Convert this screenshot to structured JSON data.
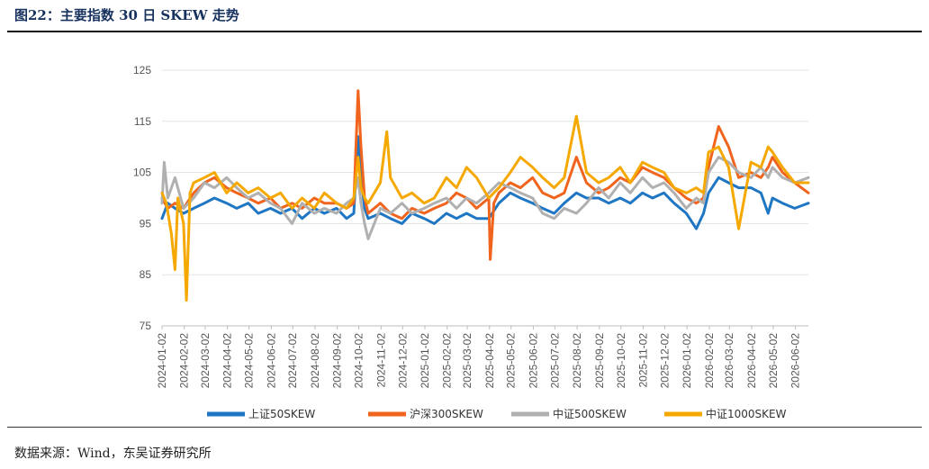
{
  "figure": {
    "title": "图22：主要指数 30 日 SKEW 走势",
    "source": "数据来源：Wind，东吴证券研究所"
  },
  "chart_data": {
    "type": "line",
    "x_categories": [
      "2024-01-02",
      "2024-02-02",
      "2024-03-02",
      "2024-04-02",
      "2024-05-02",
      "2024-06-02",
      "2024-07-02",
      "2024-08-02",
      "2024-09-02",
      "2024-10-02",
      "2024-11-02",
      "2024-12-02",
      "2025-01-02",
      "2025-02-02",
      "2025-03-02",
      "2025-04-02",
      "2025-05-02",
      "2025-06-02",
      "2025-07-02",
      "2025-08-02",
      "2025-09-02",
      "2025-10-02",
      "2025-11-02",
      "2025-12-02",
      "2026-01-02",
      "2026-02-02",
      "2026-03-02",
      "2026-04-02",
      "2026-05-02",
      "2026-06-02"
    ],
    "x_range": [
      "2024-01-02",
      "2026-06-20"
    ],
    "ylim": [
      75,
      125
    ],
    "yticks": [
      75,
      85,
      95,
      105,
      115,
      125
    ],
    "grid": "horizontal",
    "legend_position": "bottom",
    "series": [
      {
        "name": "上证50SKEW",
        "color": "#1f77c4",
        "points": [
          [
            "2024-01-02",
            96
          ],
          [
            "2024-01-10",
            99
          ],
          [
            "2024-01-20",
            98
          ],
          [
            "2024-02-01",
            97
          ],
          [
            "2024-02-15",
            98
          ],
          [
            "2024-03-01",
            99
          ],
          [
            "2024-03-15",
            100
          ],
          [
            "2024-04-01",
            99
          ],
          [
            "2024-04-15",
            98
          ],
          [
            "2024-05-01",
            99
          ],
          [
            "2024-05-15",
            97
          ],
          [
            "2024-06-01",
            98
          ],
          [
            "2024-06-15",
            97
          ],
          [
            "2024-07-01",
            98
          ],
          [
            "2024-07-15",
            96
          ],
          [
            "2024-08-01",
            98
          ],
          [
            "2024-08-15",
            97
          ],
          [
            "2024-09-01",
            98
          ],
          [
            "2024-09-15",
            96
          ],
          [
            "2024-09-25",
            97
          ],
          [
            "2024-10-01",
            112
          ],
          [
            "2024-10-05",
            104
          ],
          [
            "2024-10-10",
            98
          ],
          [
            "2024-10-15",
            96
          ],
          [
            "2024-11-01",
            97
          ],
          [
            "2024-11-15",
            96
          ],
          [
            "2024-12-01",
            95
          ],
          [
            "2024-12-15",
            97
          ],
          [
            "2025-01-01",
            96
          ],
          [
            "2025-01-15",
            95
          ],
          [
            "2025-02-01",
            97
          ],
          [
            "2025-02-15",
            96
          ],
          [
            "2025-03-01",
            97
          ],
          [
            "2025-03-15",
            96
          ],
          [
            "2025-04-01",
            96
          ],
          [
            "2025-04-15",
            99
          ],
          [
            "2025-05-01",
            101
          ],
          [
            "2025-05-15",
            100
          ],
          [
            "2025-06-01",
            99
          ],
          [
            "2025-06-15",
            98
          ],
          [
            "2025-07-01",
            97
          ],
          [
            "2025-07-15",
            99
          ],
          [
            "2025-08-01",
            101
          ],
          [
            "2025-08-15",
            100
          ],
          [
            "2025-09-01",
            100
          ],
          [
            "2025-09-15",
            99
          ],
          [
            "2025-10-01",
            100
          ],
          [
            "2025-10-15",
            99
          ],
          [
            "2025-11-01",
            101
          ],
          [
            "2025-11-15",
            100
          ],
          [
            "2025-12-01",
            101
          ],
          [
            "2025-12-15",
            99
          ],
          [
            "2026-01-01",
            97
          ],
          [
            "2026-01-15",
            94
          ],
          [
            "2026-01-25",
            97
          ],
          [
            "2026-02-01",
            101
          ],
          [
            "2026-02-15",
            104
          ],
          [
            "2026-03-01",
            103
          ],
          [
            "2026-03-15",
            102
          ],
          [
            "2026-04-01",
            102
          ],
          [
            "2026-04-15",
            101
          ],
          [
            "2026-04-25",
            97
          ],
          [
            "2026-05-01",
            100
          ],
          [
            "2026-05-15",
            99
          ],
          [
            "2026-06-01",
            98
          ],
          [
            "2026-06-20",
            99
          ]
        ]
      },
      {
        "name": "沪深300SKEW",
        "color": "#f0641e",
        "points": [
          [
            "2024-01-02",
            100
          ],
          [
            "2024-01-10",
            98
          ],
          [
            "2024-01-20",
            99
          ],
          [
            "2024-02-01",
            98
          ],
          [
            "2024-02-15",
            101
          ],
          [
            "2024-03-01",
            103
          ],
          [
            "2024-03-15",
            104
          ],
          [
            "2024-04-01",
            102
          ],
          [
            "2024-04-15",
            101
          ],
          [
            "2024-05-01",
            100
          ],
          [
            "2024-05-15",
            99
          ],
          [
            "2024-06-01",
            100
          ],
          [
            "2024-06-15",
            98
          ],
          [
            "2024-07-01",
            99
          ],
          [
            "2024-07-15",
            98
          ],
          [
            "2024-08-01",
            100
          ],
          [
            "2024-08-15",
            99
          ],
          [
            "2024-09-01",
            99
          ],
          [
            "2024-09-15",
            98
          ],
          [
            "2024-09-25",
            99
          ],
          [
            "2024-10-01",
            121
          ],
          [
            "2024-10-05",
            110
          ],
          [
            "2024-10-10",
            100
          ],
          [
            "2024-10-15",
            97
          ],
          [
            "2024-11-01",
            99
          ],
          [
            "2024-11-15",
            97
          ],
          [
            "2024-12-01",
            96
          ],
          [
            "2024-12-15",
            98
          ],
          [
            "2025-01-01",
            97
          ],
          [
            "2025-01-15",
            98
          ],
          [
            "2025-02-01",
            99
          ],
          [
            "2025-02-15",
            101
          ],
          [
            "2025-03-01",
            100
          ],
          [
            "2025-03-15",
            98
          ],
          [
            "2025-04-01",
            100
          ],
          [
            "2025-04-03",
            88
          ],
          [
            "2025-04-08",
            99
          ],
          [
            "2025-04-15",
            101
          ],
          [
            "2025-05-01",
            103
          ],
          [
            "2025-05-15",
            102
          ],
          [
            "2025-06-01",
            104
          ],
          [
            "2025-06-15",
            101
          ],
          [
            "2025-07-01",
            100
          ],
          [
            "2025-07-15",
            101
          ],
          [
            "2025-08-01",
            108
          ],
          [
            "2025-08-15",
            103
          ],
          [
            "2025-09-01",
            101
          ],
          [
            "2025-09-15",
            102
          ],
          [
            "2025-10-01",
            104
          ],
          [
            "2025-10-15",
            103
          ],
          [
            "2025-11-01",
            106
          ],
          [
            "2025-11-15",
            105
          ],
          [
            "2025-12-01",
            104
          ],
          [
            "2025-12-15",
            102
          ],
          [
            "2026-01-01",
            100
          ],
          [
            "2026-01-15",
            99
          ],
          [
            "2026-01-25",
            100
          ],
          [
            "2026-02-01",
            106
          ],
          [
            "2026-02-15",
            114
          ],
          [
            "2026-03-01",
            110
          ],
          [
            "2026-03-15",
            104
          ],
          [
            "2026-04-01",
            105
          ],
          [
            "2026-04-15",
            104
          ],
          [
            "2026-04-25",
            106
          ],
          [
            "2026-05-01",
            108
          ],
          [
            "2026-05-15",
            105
          ],
          [
            "2026-06-01",
            103
          ],
          [
            "2026-06-20",
            101
          ]
        ]
      },
      {
        "name": "中证500SKEW",
        "color": "#b0b0b0",
        "points": [
          [
            "2024-01-02",
            99
          ],
          [
            "2024-01-05",
            107
          ],
          [
            "2024-01-10",
            100
          ],
          [
            "2024-01-20",
            104
          ],
          [
            "2024-02-01",
            98
          ],
          [
            "2024-02-15",
            100
          ],
          [
            "2024-03-01",
            103
          ],
          [
            "2024-03-15",
            102
          ],
          [
            "2024-04-01",
            104
          ],
          [
            "2024-04-15",
            102
          ],
          [
            "2024-05-01",
            100
          ],
          [
            "2024-05-15",
            101
          ],
          [
            "2024-06-01",
            99
          ],
          [
            "2024-06-15",
            98
          ],
          [
            "2024-07-01",
            95
          ],
          [
            "2024-07-15",
            99
          ],
          [
            "2024-08-01",
            97
          ],
          [
            "2024-08-15",
            98
          ],
          [
            "2024-09-01",
            97
          ],
          [
            "2024-09-15",
            99
          ],
          [
            "2024-09-25",
            100
          ],
          [
            "2024-10-01",
            104
          ],
          [
            "2024-10-05",
            99
          ],
          [
            "2024-10-10",
            95
          ],
          [
            "2024-10-15",
            92
          ],
          [
            "2024-11-01",
            98
          ],
          [
            "2024-11-15",
            97
          ],
          [
            "2024-12-01",
            99
          ],
          [
            "2024-12-15",
            97
          ],
          [
            "2025-01-01",
            98
          ],
          [
            "2025-01-15",
            99
          ],
          [
            "2025-02-01",
            100
          ],
          [
            "2025-02-15",
            98
          ],
          [
            "2025-03-01",
            100
          ],
          [
            "2025-03-15",
            99
          ],
          [
            "2025-04-01",
            101
          ],
          [
            "2025-04-15",
            103
          ],
          [
            "2025-05-01",
            102
          ],
          [
            "2025-05-15",
            101
          ],
          [
            "2025-06-01",
            100
          ],
          [
            "2025-06-15",
            97
          ],
          [
            "2025-07-01",
            96
          ],
          [
            "2025-07-15",
            98
          ],
          [
            "2025-08-01",
            97
          ],
          [
            "2025-08-15",
            99
          ],
          [
            "2025-09-01",
            102
          ],
          [
            "2025-09-15",
            100
          ],
          [
            "2025-10-01",
            103
          ],
          [
            "2025-10-15",
            101
          ],
          [
            "2025-11-01",
            104
          ],
          [
            "2025-11-15",
            102
          ],
          [
            "2025-12-01",
            103
          ],
          [
            "2025-12-15",
            101
          ],
          [
            "2026-01-01",
            98
          ],
          [
            "2026-01-15",
            100
          ],
          [
            "2026-01-25",
            99
          ],
          [
            "2026-02-01",
            105
          ],
          [
            "2026-02-15",
            108
          ],
          [
            "2026-03-01",
            107
          ],
          [
            "2026-03-15",
            105
          ],
          [
            "2026-04-01",
            104
          ],
          [
            "2026-04-15",
            106
          ],
          [
            "2026-04-25",
            104
          ],
          [
            "2026-05-01",
            106
          ],
          [
            "2026-05-15",
            104
          ],
          [
            "2026-06-01",
            103
          ],
          [
            "2026-06-20",
            104
          ]
        ]
      },
      {
        "name": "中证1000SKEW",
        "color": "#f5a800",
        "points": [
          [
            "2024-01-02",
            101
          ],
          [
            "2024-01-08",
            99
          ],
          [
            "2024-01-15",
            93
          ],
          [
            "2024-01-20",
            86
          ],
          [
            "2024-01-24",
            100
          ],
          [
            "2024-02-01",
            95
          ],
          [
            "2024-02-05",
            80
          ],
          [
            "2024-02-10",
            101
          ],
          [
            "2024-02-15",
            103
          ],
          [
            "2024-03-01",
            104
          ],
          [
            "2024-03-15",
            105
          ],
          [
            "2024-04-01",
            101
          ],
          [
            "2024-04-15",
            103
          ],
          [
            "2024-05-01",
            101
          ],
          [
            "2024-05-15",
            102
          ],
          [
            "2024-06-01",
            100
          ],
          [
            "2024-06-15",
            101
          ],
          [
            "2024-07-01",
            98
          ],
          [
            "2024-07-15",
            100
          ],
          [
            "2024-08-01",
            98
          ],
          [
            "2024-08-15",
            101
          ],
          [
            "2024-09-01",
            99
          ],
          [
            "2024-09-15",
            98
          ],
          [
            "2024-09-25",
            100
          ],
          [
            "2024-10-01",
            108
          ],
          [
            "2024-10-05",
            102
          ],
          [
            "2024-10-10",
            100
          ],
          [
            "2024-10-15",
            99
          ],
          [
            "2024-11-01",
            103
          ],
          [
            "2024-11-10",
            113
          ],
          [
            "2024-11-15",
            104
          ],
          [
            "2024-12-01",
            100
          ],
          [
            "2024-12-15",
            101
          ],
          [
            "2025-01-01",
            99
          ],
          [
            "2025-01-15",
            100
          ],
          [
            "2025-02-01",
            104
          ],
          [
            "2025-02-15",
            102
          ],
          [
            "2025-03-01",
            106
          ],
          [
            "2025-03-15",
            104
          ],
          [
            "2025-04-01",
            100
          ],
          [
            "2025-04-15",
            102
          ],
          [
            "2025-05-01",
            105
          ],
          [
            "2025-05-15",
            108
          ],
          [
            "2025-06-01",
            106
          ],
          [
            "2025-06-15",
            104
          ],
          [
            "2025-07-01",
            102
          ],
          [
            "2025-07-15",
            104
          ],
          [
            "2025-08-01",
            116
          ],
          [
            "2025-08-15",
            105
          ],
          [
            "2025-09-01",
            103
          ],
          [
            "2025-09-15",
            104
          ],
          [
            "2025-10-01",
            106
          ],
          [
            "2025-10-15",
            103
          ],
          [
            "2025-11-01",
            107
          ],
          [
            "2025-11-15",
            106
          ],
          [
            "2025-12-01",
            105
          ],
          [
            "2025-12-15",
            102
          ],
          [
            "2026-01-01",
            101
          ],
          [
            "2026-01-15",
            102
          ],
          [
            "2026-01-25",
            101
          ],
          [
            "2026-02-01",
            109
          ],
          [
            "2026-02-15",
            110
          ],
          [
            "2026-03-01",
            106
          ],
          [
            "2026-03-15",
            94
          ],
          [
            "2026-04-01",
            107
          ],
          [
            "2026-04-15",
            106
          ],
          [
            "2026-04-25",
            110
          ],
          [
            "2026-05-01",
            109
          ],
          [
            "2026-05-15",
            106
          ],
          [
            "2026-06-01",
            103
          ],
          [
            "2026-06-20",
            103
          ]
        ]
      }
    ]
  }
}
